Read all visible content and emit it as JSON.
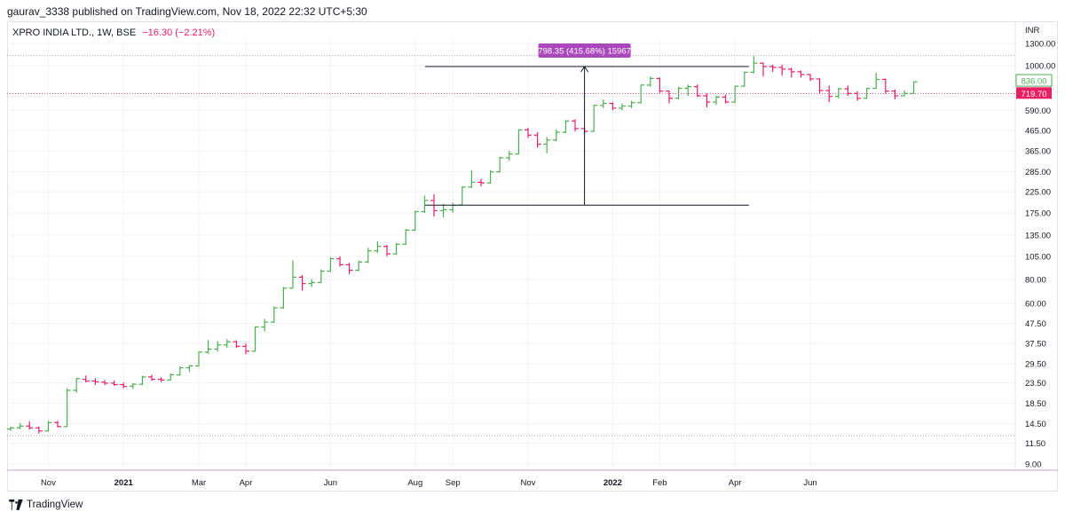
{
  "publish_line": "gaurav_3338 published on TradingView.com, Nov 18, 2022 22:32 UTC+5:30",
  "legend": {
    "symbol": "XPRO INDIA LTD., 1W, BSE",
    "change": "−16.30 (−2.21%)"
  },
  "footer": {
    "brand": "TradingView"
  },
  "chart_data": {
    "type": "ohlc",
    "title": "XPRO INDIA LTD., 1W, BSE",
    "currency_label": "INR",
    "y_scale": "log",
    "y_ticks": [
      "9.00",
      "11.50",
      "14.50",
      "18.50",
      "23.50",
      "29.50",
      "37.50",
      "47.50",
      "60.00",
      "80.00",
      "105.00",
      "135.00",
      "175.00",
      "225.00",
      "285.00",
      "365.00",
      "465.00",
      "590.00",
      "720.00",
      "1000.00",
      "1300.00"
    ],
    "x_ticks": [
      {
        "label": "Nov",
        "bar": 4
      },
      {
        "label": "2021",
        "bar": 12,
        "bold": true
      },
      {
        "label": "Mar",
        "bar": 20
      },
      {
        "label": "Apr",
        "bar": 25
      },
      {
        "label": "Jun",
        "bar": 34
      },
      {
        "label": "Aug",
        "bar": 43
      },
      {
        "label": "Sep",
        "bar": 47
      },
      {
        "label": "Nov",
        "bar": 55
      },
      {
        "label": "2022",
        "bar": 64,
        "bold": true
      },
      {
        "label": "Feb",
        "bar": 69
      },
      {
        "label": "Apr",
        "bar": 77
      },
      {
        "label": "Jun",
        "bar": 85
      }
    ],
    "price_labels": [
      {
        "text": "836.00",
        "value": 836,
        "style": "outline-green"
      },
      {
        "text": "719.70",
        "value": 719.7,
        "style": "fill-pink"
      }
    ],
    "reference_lines": [
      {
        "value": 1130,
        "color": "#9598a1",
        "dash": "dotted"
      },
      {
        "value": 719.7,
        "color": "#e91e63",
        "dash": "dotted"
      },
      {
        "value": 12.6,
        "color": "#9598a1",
        "dash": "dotted"
      }
    ],
    "measure": {
      "label": "798.35 (415.68%) 15967",
      "from_bar": 45,
      "to_bar": 78,
      "low": 192,
      "high": 990,
      "arrow_bar": 61
    },
    "ohlc": [
      [
        13.6,
        14.0,
        13.3,
        13.8
      ],
      [
        13.8,
        14.6,
        13.6,
        14.1
      ],
      [
        14.1,
        14.9,
        13.5,
        13.8
      ],
      [
        13.8,
        14.0,
        12.9,
        13.3
      ],
      [
        13.3,
        15.0,
        13.2,
        14.7
      ],
      [
        14.7,
        15.0,
        13.9,
        14.0
      ],
      [
        14.0,
        22.0,
        14.0,
        21.5
      ],
      [
        21.5,
        25.0,
        20.9,
        24.7
      ],
      [
        24.5,
        25.6,
        23.6,
        24.0
      ],
      [
        24.0,
        24.8,
        22.9,
        23.8
      ],
      [
        23.7,
        24.3,
        22.9,
        23.4
      ],
      [
        23.4,
        24.1,
        22.7,
        23.0
      ],
      [
        23.0,
        23.6,
        22.1,
        22.5
      ],
      [
        22.6,
        23.4,
        21.9,
        23.1
      ],
      [
        23.1,
        25.6,
        22.9,
        25.2
      ],
      [
        25.2,
        25.8,
        24.1,
        24.5
      ],
      [
        24.5,
        25.1,
        23.7,
        24.3
      ],
      [
        24.3,
        26.3,
        24.1,
        25.9
      ],
      [
        25.8,
        28.5,
        25.6,
        28.1
      ],
      [
        28.1,
        29.0,
        26.8,
        28.7
      ],
      [
        28.7,
        34.0,
        28.5,
        33.8
      ],
      [
        33.8,
        39.0,
        33.2,
        35.0
      ],
      [
        35.0,
        38.5,
        34.0,
        36.8
      ],
      [
        36.8,
        39.3,
        35.5,
        38.2
      ],
      [
        38.2,
        38.8,
        35.5,
        36.2
      ],
      [
        36.2,
        37.4,
        33.0,
        34.2
      ],
      [
        34.2,
        45.8,
        34.0,
        45.5
      ],
      [
        45.5,
        50.0,
        43.2,
        48.2
      ],
      [
        48.2,
        58.0,
        47.8,
        57.0
      ],
      [
        57.0,
        73.0,
        56.5,
        72.0
      ],
      [
        72.0,
        100.0,
        71.5,
        82.0
      ],
      [
        82.0,
        84.0,
        70.0,
        76.0
      ],
      [
        76.0,
        80.0,
        73.0,
        77.0
      ],
      [
        77.0,
        90.0,
        76.5,
        88.0
      ],
      [
        88.0,
        104.0,
        87.5,
        102.0
      ],
      [
        102.0,
        105.0,
        93.0,
        95.0
      ],
      [
        95.0,
        97.0,
        85.0,
        89.0
      ],
      [
        89.0,
        100.0,
        88.0,
        98.0
      ],
      [
        98.0,
        116.0,
        97.0,
        112.0
      ],
      [
        112.0,
        125.0,
        109.0,
        118.0
      ],
      [
        118.0,
        120.0,
        105.0,
        108.0
      ],
      [
        108.0,
        123.0,
        107.0,
        121.0
      ],
      [
        121.0,
        145.0,
        120.0,
        143.0
      ],
      [
        143.0,
        180.0,
        142.0,
        178.0
      ],
      [
        178.0,
        215.0,
        175.0,
        203.0
      ],
      [
        203.0,
        218.0,
        168.0,
        180.0
      ],
      [
        180.0,
        195.0,
        166.0,
        182.0
      ],
      [
        182.0,
        198.0,
        176.0,
        192.0
      ],
      [
        193.0,
        240.0,
        192.0,
        238.0
      ],
      [
        238.0,
        290.0,
        236.0,
        252.0
      ],
      [
        252.0,
        262.0,
        240.0,
        250.0
      ],
      [
        250.0,
        290.0,
        248.0,
        285.0
      ],
      [
        285.0,
        340.0,
        283.0,
        336.0
      ],
      [
        336.0,
        365.0,
        325.0,
        352.0
      ],
      [
        352.0,
        470.0,
        350.0,
        468.0
      ],
      [
        468.0,
        480.0,
        425.0,
        440.0
      ],
      [
        440.0,
        455.0,
        380.0,
        395.0
      ],
      [
        395.0,
        430.0,
        355.0,
        415.0
      ],
      [
        415.0,
        470.0,
        410.0,
        455.0
      ],
      [
        455.0,
        525.0,
        450.0,
        520.0
      ],
      [
        520.0,
        530.0,
        460.0,
        475.0
      ],
      [
        475.0,
        480.0,
        445.0,
        460.0
      ],
      [
        460.0,
        630.0,
        458.0,
        625.0
      ],
      [
        625.0,
        670.0,
        605.0,
        640.0
      ],
      [
        640.0,
        648.0,
        590.0,
        605.0
      ],
      [
        605.0,
        640.0,
        590.0,
        620.0
      ],
      [
        620.0,
        660.0,
        605.0,
        645.0
      ],
      [
        645.0,
        800.0,
        640.0,
        795.0
      ],
      [
        795.0,
        880.0,
        780.0,
        860.0
      ],
      [
        860.0,
        870.0,
        725.0,
        740.0
      ],
      [
        740.0,
        745.0,
        640.0,
        680.0
      ],
      [
        680.0,
        780.0,
        670.0,
        765.0
      ],
      [
        765.0,
        800.0,
        700.0,
        780.0
      ],
      [
        780.0,
        800.0,
        690.0,
        700.0
      ],
      [
        700.0,
        720.0,
        610.0,
        650.0
      ],
      [
        650.0,
        700.0,
        630.0,
        690.0
      ],
      [
        690.0,
        710.0,
        640.0,
        650.0
      ],
      [
        650.0,
        790.0,
        645.0,
        785.0
      ],
      [
        785.0,
        930.0,
        780.0,
        925.0
      ],
      [
        925.0,
        1120.0,
        915.0,
        1030.0
      ],
      [
        1030.0,
        1040.0,
        880.0,
        990.0
      ],
      [
        990.0,
        1010.0,
        930.0,
        980.0
      ],
      [
        980.0,
        1010.0,
        890.0,
        960.0
      ],
      [
        960.0,
        975.0,
        870.0,
        930.0
      ],
      [
        930.0,
        945.0,
        870.0,
        900.0
      ],
      [
        900.0,
        905.0,
        835.0,
        855.0
      ],
      [
        855.0,
        860.0,
        720.0,
        745.0
      ],
      [
        745.0,
        790.0,
        650.0,
        695.0
      ],
      [
        695.0,
        770.0,
        680.0,
        760.0
      ],
      [
        760.0,
        790.0,
        700.0,
        720.0
      ],
      [
        720.0,
        740.0,
        660.0,
        680.0
      ],
      [
        680.0,
        770.0,
        675.0,
        765.0
      ],
      [
        765.0,
        920.0,
        760.0,
        850.0
      ],
      [
        850.0,
        860.0,
        720.0,
        740.0
      ],
      [
        740.0,
        755.0,
        670.0,
        700.0
      ],
      [
        700.0,
        745.0,
        695.0,
        720.0
      ],
      [
        720.0,
        830.0,
        715.0,
        826.0
      ]
    ]
  }
}
